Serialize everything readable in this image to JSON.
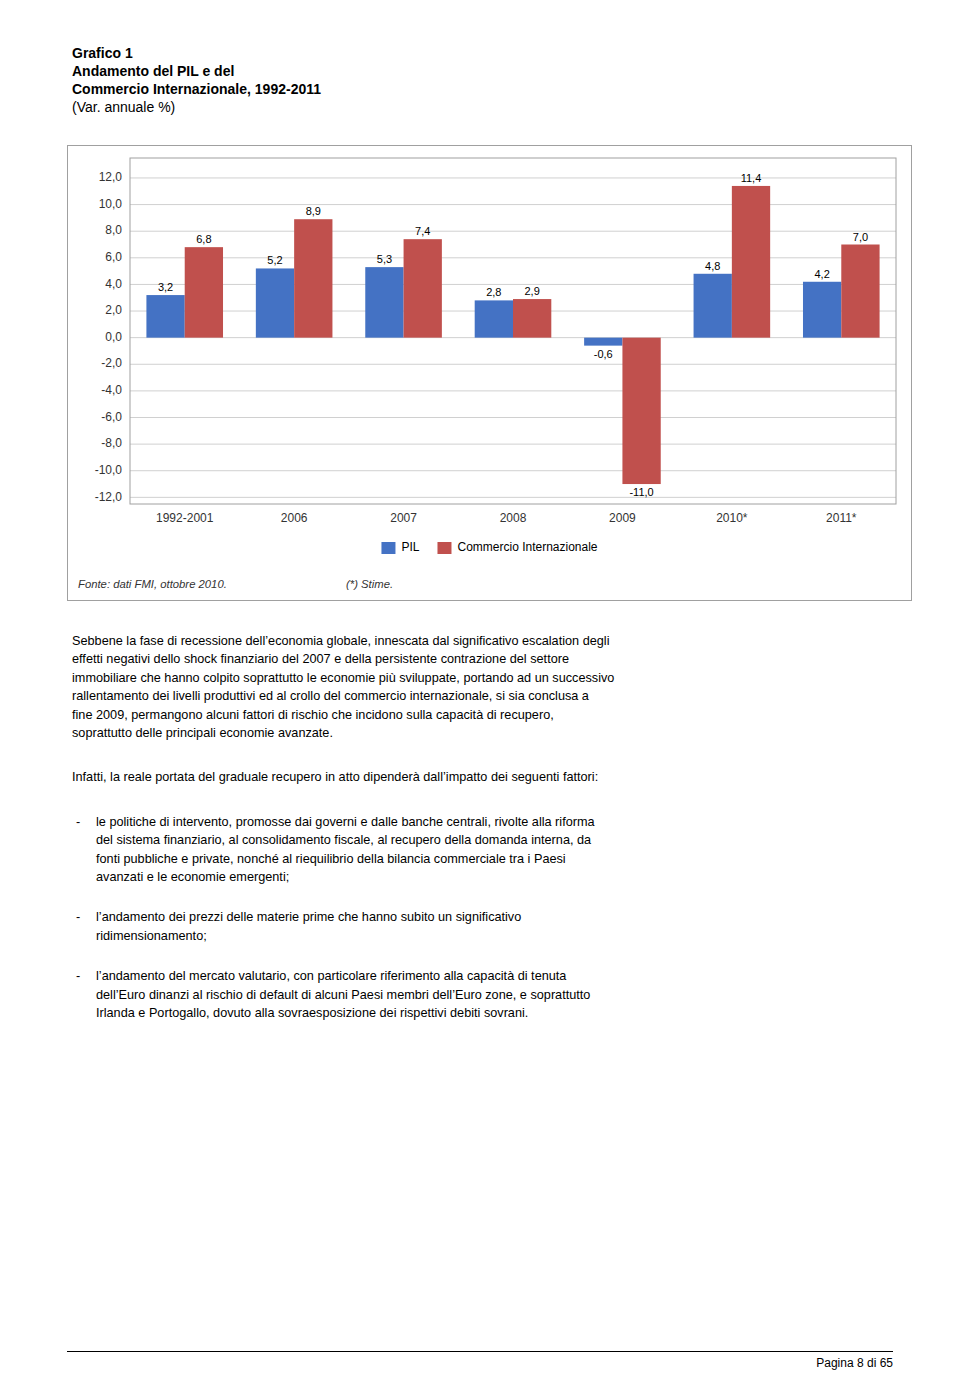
{
  "chart_data": {
    "type": "bar",
    "title": "Grafico 1\nAndamento del PIL e del\nCommercio Internazionale, 1992-2011",
    "subtitle": "(Var. annuale %)",
    "categories": [
      "1992-2001",
      "2006",
      "2007",
      "2008",
      "2009",
      "2010*",
      "2011*"
    ],
    "series": [
      {
        "name": "PIL",
        "color": "#4472C4",
        "values": [
          3.2,
          5.2,
          5.3,
          2.8,
          -0.6,
          4.8,
          4.2
        ],
        "value_labels": [
          "3,2",
          "5,2",
          "5,3",
          "2,8",
          "-0,6",
          "4,8",
          "4,2"
        ]
      },
      {
        "name": "Commercio Internazionale",
        "color": "#C0504D",
        "values": [
          6.8,
          8.9,
          7.4,
          2.9,
          -11.0,
          11.4,
          7.0
        ],
        "value_labels": [
          "6,8",
          "8,9",
          "7,4",
          "2,9",
          "-11,0",
          "11,4",
          "7,0"
        ]
      }
    ],
    "ylim": [
      -12.5,
      13.5
    ],
    "yticks": [
      {
        "value": -12,
        "label": "-12,0"
      },
      {
        "value": -10,
        "label": "-10,0"
      },
      {
        "value": -8,
        "label": "-8,0"
      },
      {
        "value": -6,
        "label": "-6,0"
      },
      {
        "value": -4,
        "label": "-4,0"
      },
      {
        "value": -2,
        "label": "-2,0"
      },
      {
        "value": 0,
        "label": "0,0"
      },
      {
        "value": 2,
        "label": "2,0"
      },
      {
        "value": 4,
        "label": "4,0"
      },
      {
        "value": 6,
        "label": "6,0"
      },
      {
        "value": 8,
        "label": "8,0"
      },
      {
        "value": 10,
        "label": "10,0"
      },
      {
        "value": 12,
        "label": "12,0"
      }
    ],
    "grid": true,
    "legend": "bottom",
    "data_labels": true,
    "annotations": [
      "Fonte: dati FMI, ottobre 2010.",
      "(*) Stime."
    ]
  },
  "page": {
    "paragraphs": [
      "Sebbene la fase di recessione dell’economia globale, innescata dal significativo escalation degli\neffetti negativi dello shock finanziario del 2007 e della persistente contrazione del settore\nimmobiliare che hanno colpito soprattutto le economie più sviluppate, portando ad un successivo\nrallentamento dei livelli produttivi ed al crollo del commercio internazionale, si sia conclusa a\nfine 2009, permangono alcuni fattori di rischio che incidono sulla capacità di recupero,\nsoprattutto delle principali economie avanzate.",
      "Infatti, la reale portata del graduale recupero in atto dipenderà dall’impatto dei seguenti fattori:"
    ],
    "bullet_marker": "-",
    "bullets": [
      "le politiche di intervento, promosse dai governi e dalle banche centrali, rivolte alla riforma\ndel sistema finanziario, al consolidamento fiscale, al recupero della domanda interna, da\nfonti pubbliche e private, nonché al riequilibrio della bilancia commerciale tra i Paesi\navanzati e le economie emergenti;",
      "l’andamento dei prezzi delle materie prime che hanno subito un significativo\nridimensionamento;",
      "l’andamento del mercato valutario, con particolare riferimento alla capacità di tenuta\ndell’Euro dinanzi al rischio di default di alcuni Paesi membri dell’Euro zone, e soprattutto\nIrlanda e Portogallo, dovuto alla sovraesposizione dei rispettivi debiti sovrani."
    ],
    "page_number": "Pagina 8 di 65"
  }
}
